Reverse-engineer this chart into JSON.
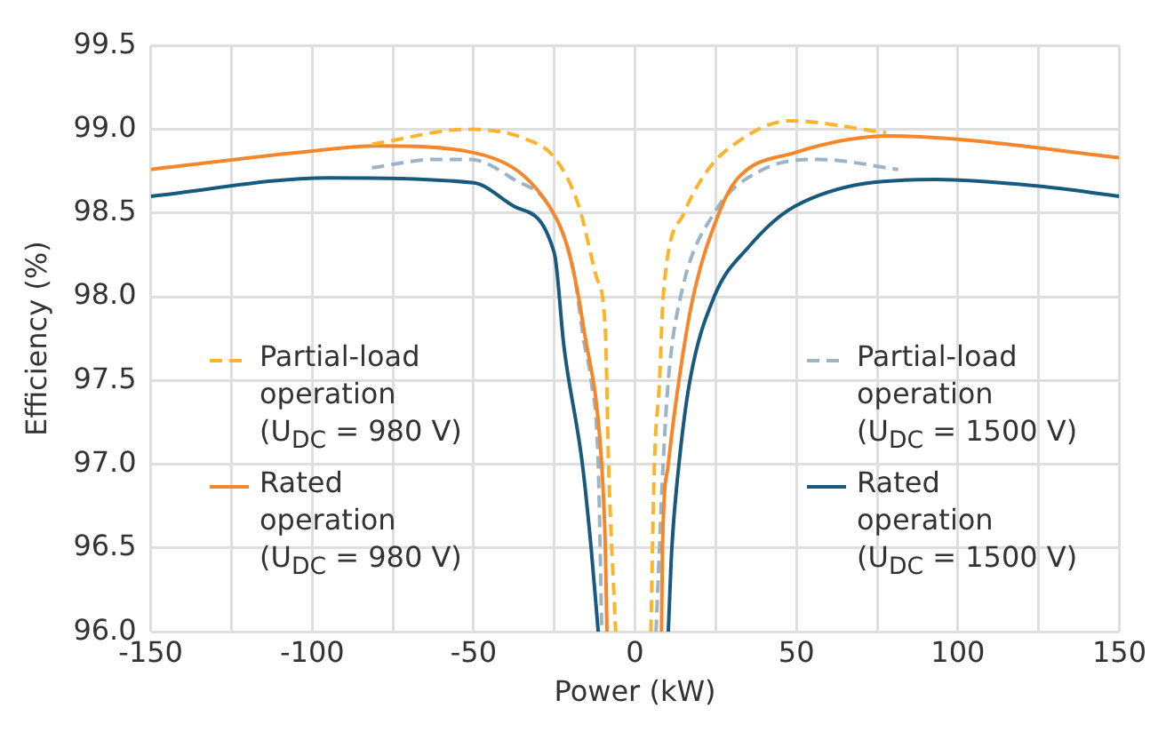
{
  "chart_data": {
    "type": "line",
    "xlabel": "Power (kW)",
    "ylabel": "Efficiency (%)",
    "xlim": [
      -150,
      150
    ],
    "xticks": [
      -150,
      {
        "value": -125,
        "label": null
      },
      -100,
      {
        "value": -75,
        "label": null
      },
      -50,
      {
        "value": -25,
        "label": null
      },
      0,
      {
        "value": 25,
        "label": null
      },
      50,
      {
        "value": 75,
        "label": null
      },
      100,
      {
        "value": 125,
        "label": null
      },
      150
    ],
    "ylim": [
      96.0,
      99.5
    ],
    "yticks": [
      {
        "value": 96,
        "label": "96.0"
      },
      96.5,
      {
        "value": 97,
        "label": "97.0"
      },
      97.5,
      {
        "value": 98,
        "label": "98.0"
      },
      98.5,
      {
        "value": 99,
        "label": "99.0"
      },
      99.5
    ],
    "grid": true,
    "legend": "center",
    "marker": "none",
    "series": [
      {
        "name": "Partial-load operation (U$_{DC}$ = 980 V)",
        "color": "#fbb42c",
        "line_style": "dashed",
        "x": [
          -81.5,
          -51.6,
          -33.7,
          -24.5,
          -17.4,
          -12,
          -9.2,
          -8.2,
          -6,
          null,
          4.9,
          6,
          7.6,
          8.7,
          15.2,
          22.3,
          30,
          47.8,
          77.7
        ],
        "values": [
          98.91,
          99.0,
          98.94,
          98.82,
          98.54,
          98.12,
          97.8,
          97.0,
          96.0,
          null,
          96.0,
          97.0,
          97.5,
          98.0,
          98.5,
          98.75,
          98.9,
          99.05,
          98.98
        ]
      },
      {
        "name": "Rated operation (U$_{DC}$ = 980 V)",
        "color": "#f5862a",
        "line_style": "solid",
        "x": [
          -150,
          -100,
          -80,
          -50,
          -25,
          -20,
          -15.8,
          -10.3,
          -9.2,
          -8.7,
          null,
          8.2,
          8.5,
          10.3,
          13.6,
          17.9,
          26,
          31.5,
          49.5,
          78.8,
          100,
          150
        ],
        "values": [
          98.76,
          98.87,
          98.9,
          98.86,
          98.49,
          98.23,
          97.8,
          96.99,
          96.5,
          96.0,
          null,
          96.0,
          96.5,
          97.0,
          97.5,
          97.99,
          98.5,
          98.7,
          98.86,
          98.96,
          98.94,
          98.83
        ]
      },
      {
        "name": "Partial-load operation (U$_{DC}$ = 1500 V)",
        "color": "#9bb5c6",
        "line_style": "dashed",
        "x": [
          -81.5,
          -62,
          -51,
          -37.5,
          -26.6,
          -19,
          -15.8,
          -13.6,
          -11.4,
          -10.3,
          null,
          6.5,
          8.7,
          10.3,
          14.1,
          24.5,
          38.6,
          57,
          81.5
        ],
        "values": [
          98.77,
          98.82,
          98.82,
          98.7,
          98.54,
          98.15,
          97.73,
          97.5,
          97.0,
          96.0,
          null,
          96.0,
          97.0,
          97.5,
          98.0,
          98.5,
          98.75,
          98.82,
          98.76
        ]
      },
      {
        "name": "Rated operation (U$_{DC}$ = 1500 V)",
        "color": "#175a7e",
        "line_style": "solid",
        "x": [
          -150,
          -95,
          -50,
          -37.5,
          -25,
          -22,
          -16.3,
          -13.6,
          -11.4,
          null,
          10.3,
          11.4,
          13.6,
          17,
          24.5,
          35.3,
          49.5,
          93,
          125,
          150
        ],
        "values": [
          98.6,
          98.71,
          98.68,
          98.54,
          98.26,
          97.7,
          97.0,
          96.5,
          96.0,
          null,
          96.0,
          96.5,
          97.0,
          97.5,
          98.0,
          98.3,
          98.54,
          98.7,
          98.66,
          98.6
        ]
      }
    ]
  }
}
